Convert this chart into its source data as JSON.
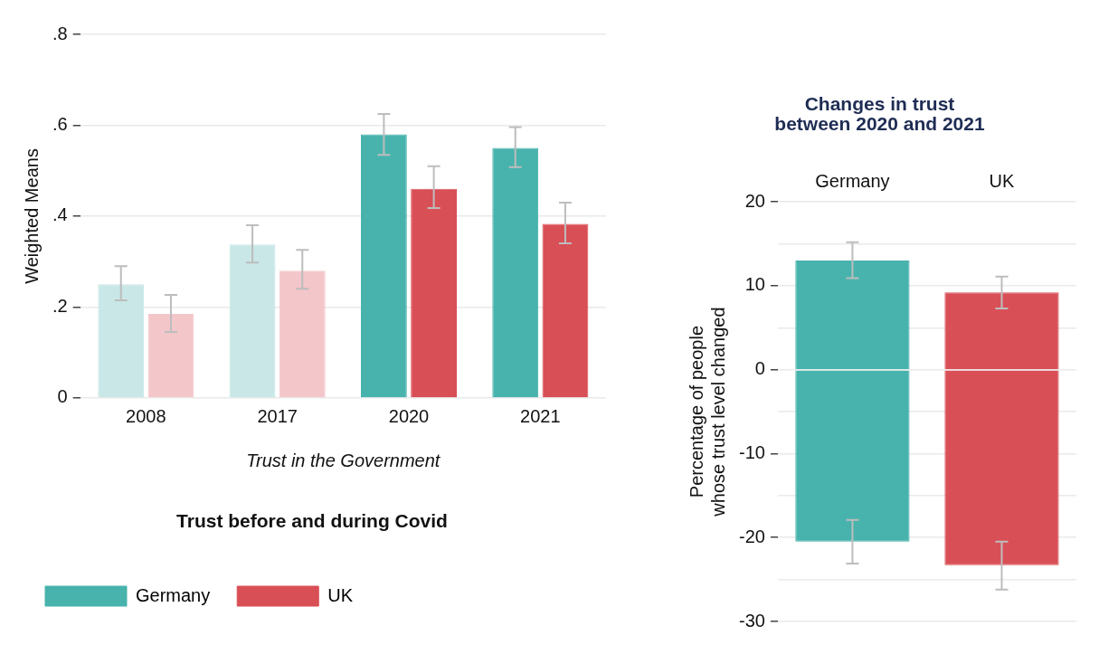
{
  "chart_data": [
    {
      "type": "bar",
      "title": "Trust before and during Covid",
      "xlabel": "Trust in the Government",
      "ylabel": "Weighted Means",
      "categories": [
        "2008",
        "2017",
        "2020",
        "2021"
      ],
      "series": [
        {
          "name": "Germany",
          "color": "#48b3ad",
          "colors": [
            "#c8e7e6",
            "#c8e7e6",
            "#48b3ad",
            "#48b3ad"
          ],
          "values": [
            0.25,
            0.338,
            0.58,
            0.55
          ],
          "errors": [
            [
              0.215,
              0.29
            ],
            [
              0.298,
              0.38
            ],
            [
              0.535,
              0.625
            ],
            [
              0.508,
              0.596
            ]
          ]
        },
        {
          "name": "UK",
          "color": "#d94f56",
          "colors": [
            "#f3c6ca",
            "#f3c6ca",
            "#d94f56",
            "#d94f56"
          ],
          "values": [
            0.185,
            0.28,
            0.46,
            0.383
          ],
          "errors": [
            [
              0.145,
              0.227
            ],
            [
              0.24,
              0.326
            ],
            [
              0.418,
              0.51
            ],
            [
              0.34,
              0.43
            ]
          ]
        }
      ],
      "ylim": [
        0,
        0.8
      ],
      "yticks": [
        0,
        {
          "value": 0.2,
          "label": ".2"
        },
        {
          "value": 0.4,
          "label": ".4"
        },
        {
          "value": 0.6,
          "label": ".6"
        },
        {
          "value": 0.8,
          "label": ".8"
        }
      ],
      "grid": "y",
      "legend": "bottom"
    },
    {
      "type": "bar",
      "title": "Changes in trust\nbetween 2020 and 2021",
      "ylabel": "Percentage of people\nwhose trust level changed",
      "categories": [
        "Germany",
        "UK"
      ],
      "stacked": true,
      "series": [
        {
          "colors": [
            "#48b3ad",
            "#d94f56"
          ],
          "values": [
            13,
            9.2
          ],
          "errors": [
            [
              10.9,
              15.2
            ],
            [
              7.3,
              11.1
            ]
          ]
        },
        {
          "colors": [
            "#48b3ad",
            "#d94f56"
          ],
          "values": [
            -20.5,
            -23.3
          ],
          "errors": [
            [
              -23.1,
              -17.9
            ],
            [
              -26.2,
              -20.5
            ]
          ]
        }
      ],
      "ylim": [
        -30,
        20
      ],
      "yticks": [
        -30,
        {
          "value": -25,
          "label": null
        },
        -20,
        {
          "value": -15,
          "label": null
        },
        -10,
        {
          "value": -5,
          "label": null
        },
        0,
        {
          "value": 5,
          "label": null
        },
        10,
        {
          "value": 15,
          "label": null
        },
        20
      ],
      "grid": "y"
    }
  ]
}
